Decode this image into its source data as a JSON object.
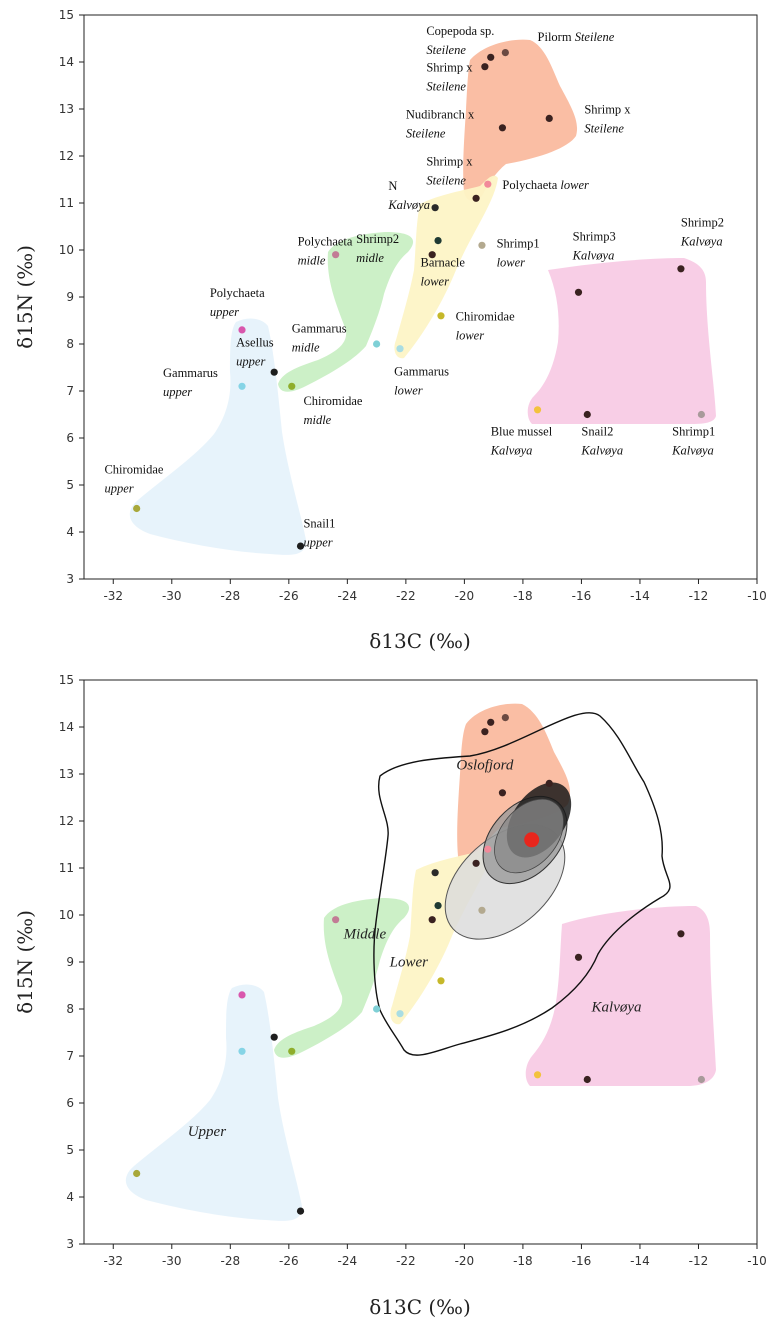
{
  "palette": {
    "oslofjord": "#f9b394",
    "kalvoya": "#f8cbe5",
    "middle": "#c9efc4",
    "lower": "#fdf4c6",
    "upper": "#e6f2fb"
  },
  "chart_data": [
    {
      "type": "scatter",
      "xlabel": "δ13C (‰)",
      "ylabel": "δ15N (‰)",
      "xlim": [
        -33,
        -10
      ],
      "ylim": [
        3,
        15
      ],
      "xticks": [
        "-32",
        "-30",
        "-28",
        "-26",
        "-24",
        "-22",
        "-20",
        "-18",
        "-16",
        "-14",
        "-12",
        "-10"
      ],
      "yticks": [
        "3",
        "4",
        "5",
        "6",
        "7",
        "8",
        "9",
        "10",
        "11",
        "12",
        "13",
        "14",
        "15"
      ],
      "grid": false,
      "points": [
        {
          "x": -18.6,
          "y": 14.2,
          "color": "#6b4a42"
        },
        {
          "x": -19.1,
          "y": 14.1,
          "color": "#3a2220"
        },
        {
          "x": -19.3,
          "y": 13.9,
          "color": "#3a2220"
        },
        {
          "x": -17.1,
          "y": 12.8,
          "color": "#3a2220"
        },
        {
          "x": -18.7,
          "y": 12.6,
          "color": "#3a2220"
        },
        {
          "x": -19.6,
          "y": 11.1,
          "color": "#3a2220"
        },
        {
          "x": -19.2,
          "y": 11.4,
          "color": "#f28a9a"
        },
        {
          "x": -21.0,
          "y": 10.9,
          "color": "#2a2a2a"
        },
        {
          "x": -20.9,
          "y": 10.2,
          "color": "#1f3a33"
        },
        {
          "x": -21.1,
          "y": 9.9,
          "color": "#3a2220"
        },
        {
          "x": -19.4,
          "y": 10.1,
          "color": "#b3a98f"
        },
        {
          "x": -20.8,
          "y": 8.6,
          "color": "#c6b82a"
        },
        {
          "x": -22.2,
          "y": 7.9,
          "color": "#a9dde3"
        },
        {
          "x": -24.4,
          "y": 9.9,
          "color": "#c27b95"
        },
        {
          "x": -23.0,
          "y": 8.0,
          "color": "#7fd0d6"
        },
        {
          "x": -25.9,
          "y": 7.1,
          "color": "#8fae2c"
        },
        {
          "x": -26.5,
          "y": 7.4,
          "color": "#1e1e1e"
        },
        {
          "x": -27.6,
          "y": 8.3,
          "color": "#d957ad"
        },
        {
          "x": -27.6,
          "y": 7.1,
          "color": "#86d4e6"
        },
        {
          "x": -31.2,
          "y": 4.5,
          "color": "#a8a83a"
        },
        {
          "x": -25.6,
          "y": 3.7,
          "color": "#1e1e1e"
        },
        {
          "x": -12.6,
          "y": 9.6,
          "color": "#3a2220"
        },
        {
          "x": -16.1,
          "y": 9.1,
          "color": "#3a2220"
        },
        {
          "x": -17.5,
          "y": 6.6,
          "color": "#f3c23d"
        },
        {
          "x": -15.8,
          "y": 6.5,
          "color": "#3a2220"
        },
        {
          "x": -11.9,
          "y": 6.5,
          "color": "#a89a9a"
        }
      ],
      "annotations": [
        {
          "id": "copepoda",
          "x": -21.3,
          "y": 14.57,
          "lines": [
            [
              "Copepoda sp.",
              ""
            ],
            [
              "",
              "Steilene"
            ]
          ]
        },
        {
          "id": "pilorm",
          "x": -17.5,
          "y": 14.45,
          "lines": [
            [
              "Pilorm ",
              "Steilene"
            ]
          ]
        },
        {
          "id": "shrimpx-a",
          "x": -21.3,
          "y": 13.8,
          "lines": [
            [
              "Shrimp x",
              ""
            ],
            [
              "",
              "Steilene"
            ]
          ]
        },
        {
          "id": "nudibranch",
          "x": -22.0,
          "y": 12.8,
          "lines": [
            [
              "Nudibranch x",
              ""
            ],
            [
              "",
              "Steilene"
            ]
          ]
        },
        {
          "id": "shrimpx-b",
          "x": -15.9,
          "y": 12.9,
          "lines": [
            [
              "Shrimp x",
              ""
            ],
            [
              "",
              "Steilene"
            ]
          ]
        },
        {
          "id": "shrimpx-c",
          "x": -21.3,
          "y": 11.8,
          "lines": [
            [
              "Shrimp x",
              ""
            ],
            [
              "",
              "Steilene"
            ]
          ]
        },
        {
          "id": "polychaeta-lower",
          "x": -18.7,
          "y": 11.3,
          "lines": [
            [
              "Polychaeta ",
              "lower"
            ]
          ]
        },
        {
          "id": "n-kalvoya",
          "x": -22.6,
          "y": 11.28,
          "lines": [
            [
              "N",
              ""
            ],
            [
              "",
              "Kalvøya"
            ]
          ]
        },
        {
          "id": "polychaeta-midle",
          "x": -25.7,
          "y": 10.1,
          "lines": [
            [
              "Polychaeta",
              ""
            ],
            [
              "",
              "midle"
            ]
          ]
        },
        {
          "id": "shrimp2-midle",
          "x": -23.7,
          "y": 10.15,
          "lines": [
            [
              "Shrimp2",
              ""
            ],
            [
              "",
              "midle"
            ]
          ]
        },
        {
          "id": "shrimp1-lower",
          "x": -18.9,
          "y": 10.05,
          "lines": [
            [
              "Shrimp1",
              ""
            ],
            [
              "",
              "lower"
            ]
          ]
        },
        {
          "id": "barnacle",
          "x": -21.5,
          "y": 9.65,
          "lines": [
            [
              "Barnacle",
              ""
            ],
            [
              "",
              "lower"
            ]
          ]
        },
        {
          "id": "shrimp3",
          "x": -16.3,
          "y": 10.2,
          "lines": [
            [
              "Shrimp3",
              ""
            ],
            [
              "",
              "Kalvøya"
            ]
          ]
        },
        {
          "id": "shrimp2-kalvoya",
          "x": -12.6,
          "y": 10.5,
          "lines": [
            [
              "Shrimp2",
              ""
            ],
            [
              "",
              "Kalvøya"
            ]
          ]
        },
        {
          "id": "polychaeta-upper",
          "x": -28.7,
          "y": 9.0,
          "lines": [
            [
              "Polychaeta",
              ""
            ],
            [
              "",
              "upper"
            ]
          ]
        },
        {
          "id": "gammarus-midle",
          "x": -25.9,
          "y": 8.25,
          "lines": [
            [
              "Gammarus",
              ""
            ],
            [
              "",
              "midle"
            ]
          ]
        },
        {
          "id": "chiromidae-lower",
          "x": -20.3,
          "y": 8.5,
          "lines": [
            [
              "Chiromidae",
              ""
            ],
            [
              "",
              "lower"
            ]
          ]
        },
        {
          "id": "asellus",
          "x": -27.8,
          "y": 7.95,
          "lines": [
            [
              "Asellus",
              ""
            ],
            [
              "",
              "upper"
            ]
          ]
        },
        {
          "id": "gammarus-upper",
          "x": -30.3,
          "y": 7.3,
          "lines": [
            [
              "Gammarus",
              ""
            ],
            [
              "",
              "upper"
            ]
          ]
        },
        {
          "id": "gammarus-lower",
          "x": -22.4,
          "y": 7.33,
          "lines": [
            [
              "Gammarus",
              ""
            ],
            [
              "",
              "lower"
            ]
          ]
        },
        {
          "id": "chiromidae-midle",
          "x": -25.5,
          "y": 6.7,
          "lines": [
            [
              "Chiromidae",
              ""
            ],
            [
              "",
              "midle"
            ]
          ]
        },
        {
          "id": "blue-mussel",
          "x": -19.1,
          "y": 6.05,
          "lines": [
            [
              "Blue mussel",
              ""
            ],
            [
              "",
              "Kalvøya"
            ]
          ]
        },
        {
          "id": "snail2",
          "x": -16.0,
          "y": 6.05,
          "lines": [
            [
              "Snail2",
              ""
            ],
            [
              "",
              "Kalvøya"
            ]
          ]
        },
        {
          "id": "shrimp1-kalvoya",
          "x": -12.9,
          "y": 6.05,
          "lines": [
            [
              "Shrimp1",
              ""
            ],
            [
              "",
              "Kalvøya"
            ]
          ]
        },
        {
          "id": "chiromidae-upper",
          "x": -32.3,
          "y": 5.25,
          "lines": [
            [
              "Chiromidae",
              ""
            ],
            [
              "",
              "upper"
            ]
          ]
        },
        {
          "id": "snail1",
          "x": -25.5,
          "y": 4.1,
          "lines": [
            [
              "Snail1",
              ""
            ],
            [
              "",
              "upper"
            ]
          ]
        }
      ]
    },
    {
      "type": "scatter",
      "xlabel": "δ13C (‰)",
      "ylabel": "δ15N (‰)",
      "xlim": [
        -33,
        -10
      ],
      "ylim": [
        3,
        15
      ],
      "xticks": [
        "-32",
        "-30",
        "-28",
        "-26",
        "-24",
        "-22",
        "-20",
        "-18",
        "-16",
        "-14",
        "-12",
        "-10"
      ],
      "yticks": [
        "3",
        "4",
        "5",
        "6",
        "7",
        "8",
        "9",
        "10",
        "11",
        "12",
        "13",
        "14",
        "15"
      ],
      "grid": false,
      "region_labels": [
        {
          "text": "Oslofjord",
          "x": -19.3,
          "y": 13.1
        },
        {
          "text": "Middle",
          "x": -23.4,
          "y": 9.5
        },
        {
          "text": "Lower",
          "x": -21.9,
          "y": 8.9
        },
        {
          "text": "Kalvøya",
          "x": -14.8,
          "y": 7.95
        },
        {
          "text": "Upper",
          "x": -28.8,
          "y": 5.3
        }
      ],
      "ellipse_center": {
        "x": -17.7,
        "y": 11.6,
        "color": "#e8261d"
      }
    }
  ]
}
